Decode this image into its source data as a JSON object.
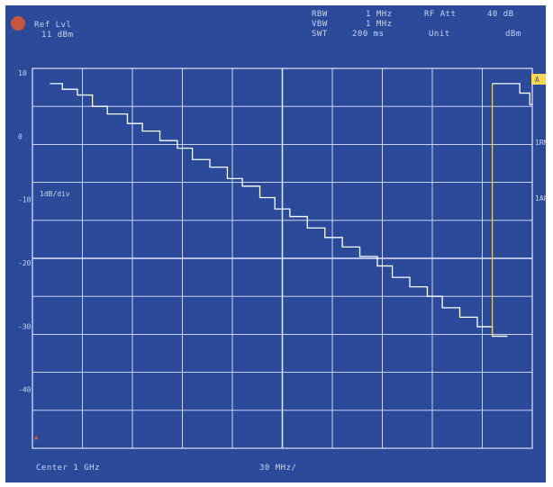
{
  "header": {
    "ref_level_label": "Ref Lvl",
    "ref_level_value": "11 dBm",
    "rbw_label": "RBW",
    "rbw_value": "1 MHz",
    "vbw_label": "VBW",
    "vbw_value": "1 MHz",
    "swt_label": "SWT",
    "swt_value": "200 ms",
    "rf_att": "RF Att",
    "rf_att_value": "40 dB",
    "unit_label": "Unit",
    "unit_value": "dBm",
    "trace_badge": "A"
  },
  "side": {
    "scale_label": "1dB/div",
    "right_top": "1RM",
    "right_mid": "1AP"
  },
  "footer": {
    "center_label": "Center 1 GHz",
    "span_label": "30 MHz/"
  },
  "colors": {
    "background": "#2b4a99",
    "grid": "#dfe5ff",
    "trace": "#ffffff",
    "trace_edge": "#e7d26a",
    "accent": "#c9573e",
    "badge": "#ffd84d"
  },
  "chart_data": {
    "type": "line",
    "grid": true,
    "xlim": [
      0,
      10
    ],
    "ylim": [
      0,
      10
    ],
    "y_ticks": [
      "10",
      "0",
      "-10",
      "-20",
      "-30",
      "-40"
    ],
    "series": [
      {
        "values": [
          [
            0.35,
            9.6
          ],
          [
            0.6,
            9.6
          ],
          [
            0.6,
            9.45
          ],
          [
            0.9,
            9.45
          ],
          [
            0.9,
            9.3
          ],
          [
            1.2,
            9.3
          ],
          [
            1.2,
            9.0
          ],
          [
            1.5,
            9.0
          ],
          [
            1.5,
            8.8
          ],
          [
            1.9,
            8.8
          ],
          [
            1.9,
            8.55
          ],
          [
            2.2,
            8.55
          ],
          [
            2.2,
            8.35
          ],
          [
            2.55,
            8.35
          ],
          [
            2.55,
            8.1
          ],
          [
            2.9,
            8.1
          ],
          [
            2.9,
            7.9
          ],
          [
            3.2,
            7.9
          ],
          [
            3.2,
            7.6
          ],
          [
            3.55,
            7.6
          ],
          [
            3.55,
            7.4
          ],
          [
            3.9,
            7.4
          ],
          [
            3.9,
            7.1
          ],
          [
            4.2,
            7.1
          ],
          [
            4.2,
            6.9
          ],
          [
            4.55,
            6.9
          ],
          [
            4.55,
            6.6
          ],
          [
            4.85,
            6.6
          ],
          [
            4.85,
            6.3
          ],
          [
            5.15,
            6.3
          ],
          [
            5.15,
            6.1
          ],
          [
            5.5,
            6.1
          ],
          [
            5.5,
            5.8
          ],
          [
            5.85,
            5.8
          ],
          [
            5.85,
            5.55
          ],
          [
            6.2,
            5.55
          ],
          [
            6.2,
            5.3
          ],
          [
            6.55,
            5.3
          ],
          [
            6.55,
            5.05
          ],
          [
            6.9,
            5.05
          ],
          [
            6.9,
            4.8
          ],
          [
            7.2,
            4.8
          ],
          [
            7.2,
            4.5
          ],
          [
            7.55,
            4.5
          ],
          [
            7.55,
            4.25
          ],
          [
            7.9,
            4.25
          ],
          [
            7.9,
            4.0
          ],
          [
            8.2,
            4.0
          ],
          [
            8.2,
            3.7
          ],
          [
            8.55,
            3.7
          ],
          [
            8.55,
            3.45
          ],
          [
            8.9,
            3.45
          ],
          [
            8.9,
            3.2
          ],
          [
            9.2,
            3.2
          ],
          [
            9.2,
            2.95
          ],
          [
            9.5,
            2.95
          ]
        ]
      },
      {
        "values": [
          [
            9.55,
            9.6
          ],
          [
            9.75,
            9.6
          ],
          [
            9.75,
            9.35
          ],
          [
            9.95,
            9.35
          ],
          [
            9.95,
            9.05
          ],
          [
            10.0,
            9.05
          ]
        ]
      }
    ],
    "sweep_edge_x": 9.2
  }
}
